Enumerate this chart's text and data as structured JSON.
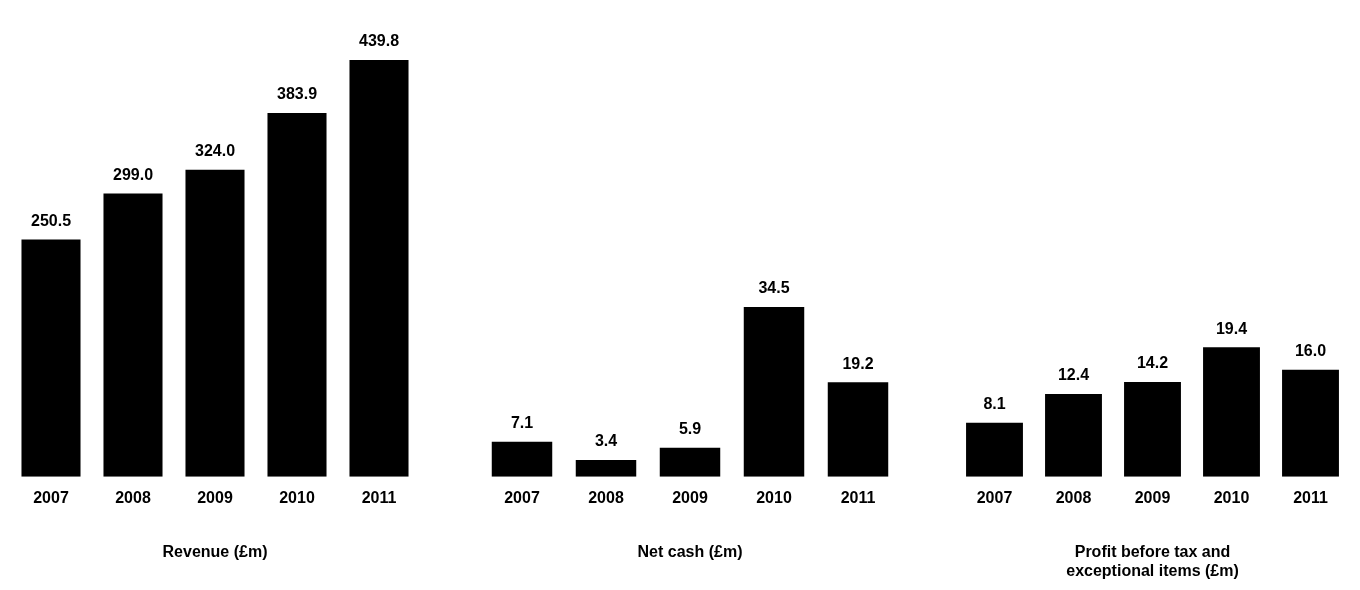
{
  "chart_data": [
    {
      "type": "bar",
      "title": "Revenue (£m)",
      "categories": [
        "2007",
        "2008",
        "2009",
        "2010",
        "2011"
      ],
      "values": [
        250.5,
        299.0,
        324.0,
        383.9,
        439.8
      ],
      "value_labels": [
        "250.5",
        "299.0",
        "324.0",
        "383.9",
        "439.8"
      ],
      "color": "#000000",
      "grid": false,
      "legend": false
    },
    {
      "type": "bar",
      "title": "Net cash (£m)",
      "categories": [
        "2007",
        "2008",
        "2009",
        "2010",
        "2011"
      ],
      "values": [
        7.1,
        3.4,
        5.9,
        34.5,
        19.2
      ],
      "value_labels": [
        "7.1",
        "3.4",
        "5.9",
        "34.5",
        "19.2"
      ],
      "color": "#000000",
      "grid": false,
      "legend": false
    },
    {
      "type": "bar",
      "title": "Profit before tax and exceptional items (£m)",
      "categories": [
        "2007",
        "2008",
        "2009",
        "2010",
        "2011"
      ],
      "values": [
        8.1,
        12.4,
        14.2,
        19.4,
        16.0
      ],
      "value_labels": [
        "8.1",
        "12.4",
        "14.2",
        "19.4",
        "16.0"
      ],
      "color": "#000000",
      "grid": false,
      "legend": false
    }
  ]
}
